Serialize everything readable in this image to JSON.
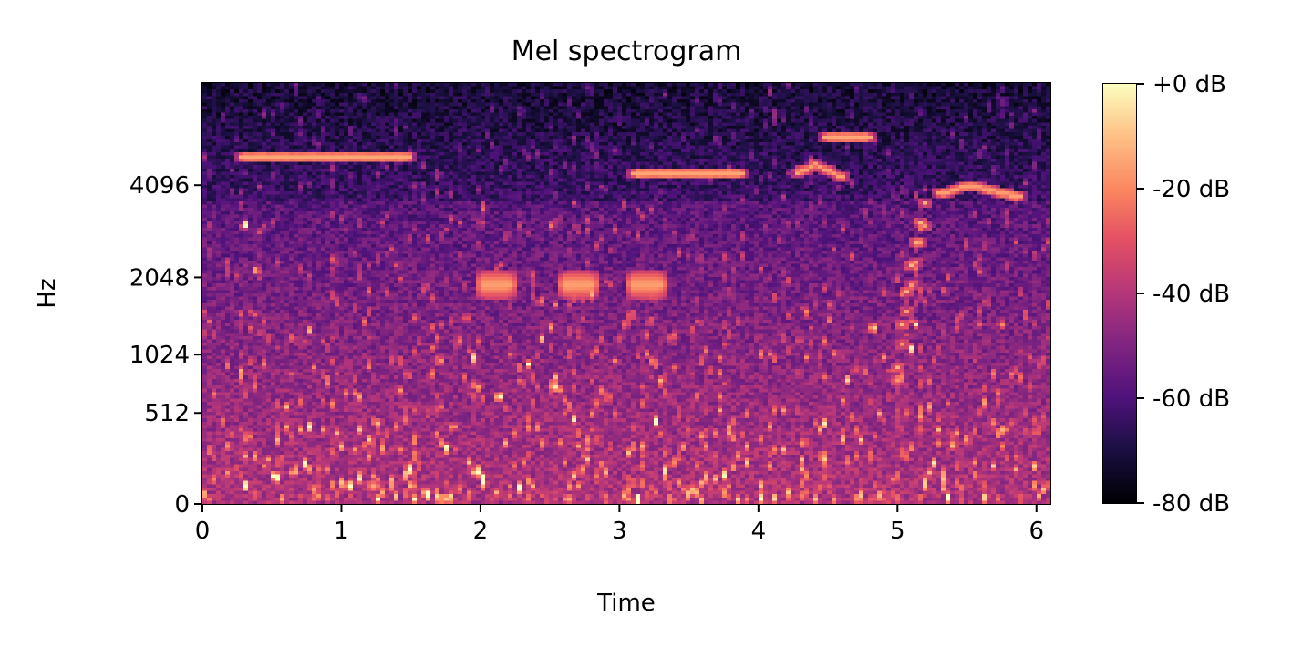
{
  "chart_data": {
    "type": "heatmap",
    "title": "Mel spectrogram",
    "xlabel": "Time",
    "ylabel": "Hz",
    "x_ticks": [
      "0",
      "1",
      "2",
      "3",
      "4",
      "5",
      "6"
    ],
    "x_tick_values": [
      0,
      1,
      2,
      3,
      4,
      5,
      6
    ],
    "xlim": [
      0,
      6.1
    ],
    "y_ticks": [
      "0",
      "512",
      "1024",
      "2048",
      "4096"
    ],
    "y_tick_values": [
      0,
      512,
      1024,
      2048,
      4096
    ],
    "y_scale": "mel",
    "ylim": [
      0,
      8192
    ],
    "colorbar": {
      "ticks": [
        "+0 dB",
        "-20 dB",
        "-40 dB",
        "-60 dB",
        "-80 dB"
      ],
      "tick_values": [
        0,
        -20,
        -40,
        -60,
        -80
      ],
      "range": [
        -80,
        0
      ],
      "colormap": "magma"
    },
    "events": [
      {
        "t0": 0.25,
        "t1": 1.5,
        "hz": 5000,
        "kind": "tonal"
      },
      {
        "t0": 3.1,
        "t1": 3.9,
        "hz": 4500,
        "kind": "tonal"
      },
      {
        "t0": 4.3,
        "t1": 4.6,
        "hz": 4400,
        "kind": "sweep"
      },
      {
        "t0": 4.5,
        "t1": 4.8,
        "hz": 5800,
        "kind": "tonal"
      },
      {
        "t0": 5.0,
        "t1": 5.2,
        "hz_low": 900,
        "hz_high": 3600,
        "kind": "sweep"
      },
      {
        "t0": 5.3,
        "t1": 5.9,
        "hz": 3800,
        "kind": "sweep"
      },
      {
        "t0": 2.0,
        "t1": 2.2,
        "hz": 1900,
        "kind": "burst"
      },
      {
        "t0": 2.6,
        "t1": 2.8,
        "hz": 1900,
        "kind": "burst"
      },
      {
        "t0": 3.1,
        "t1": 3.3,
        "hz": 1900,
        "kind": "burst"
      }
    ]
  }
}
